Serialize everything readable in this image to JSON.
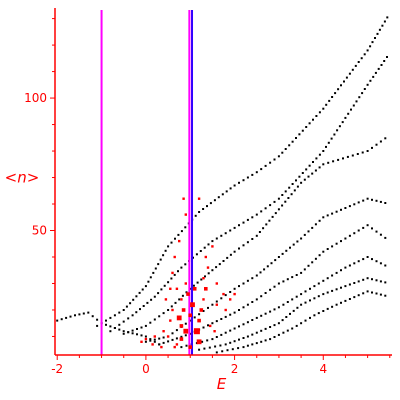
{
  "chart_data": {
    "type": "scatter",
    "xlabel": "E",
    "ylabel": "<n>",
    "xlim": [
      -2.05,
      5.55
    ],
    "ylim": [
      3,
      134
    ],
    "x_ticks": [
      -2,
      0,
      2,
      4
    ],
    "y_ticks": [
      50,
      100
    ],
    "grid": false,
    "colors": {
      "axis": "#ff0000",
      "bands": "#000000",
      "highlight": "#ff0000",
      "vline_magenta": "#ff00ff",
      "vline_blue": "#3300ff"
    },
    "vertical_lines": [
      {
        "x": -1.0,
        "color": "#ff00ff"
      },
      {
        "x": 0.98,
        "color": "#ff00ff"
      },
      {
        "x": 1.04,
        "color": "#3300ff"
      }
    ],
    "band_curves": [
      {
        "x": [
          -2.0,
          -1.6,
          -1.3,
          -1.0,
          -0.5,
          0.0,
          0.4
        ],
        "y": [
          16,
          18,
          19,
          15,
          12,
          10,
          6
        ]
      },
      {
        "x": [
          -1.1,
          -0.5,
          0.0,
          0.5,
          1.2,
          2.0,
          2.5,
          3.0,
          4.0,
          5.0,
          5.5
        ],
        "y": [
          14,
          20,
          29,
          44,
          57,
          67,
          72,
          78,
          96,
          118,
          132
        ]
      },
      {
        "x": [
          -0.8,
          -0.3,
          0.2,
          0.8,
          1.5,
          2.5,
          3.0,
          4.0,
          5.0,
          5.5
        ],
        "y": [
          12,
          18,
          25,
          36,
          46,
          56,
          62,
          80,
          105,
          117
        ]
      },
      {
        "x": [
          -0.5,
          0.0,
          0.5,
          1.0,
          1.5,
          2.0,
          2.5,
          3.0,
          3.5,
          4.0,
          5.0,
          5.5
        ],
        "y": [
          11,
          14,
          20,
          28,
          35,
          42,
          48,
          58,
          68,
          75,
          80,
          86
        ]
      },
      {
        "x": [
          0.0,
          0.5,
          1.0,
          1.5,
          2.0,
          2.5,
          3.0,
          3.5,
          4.0,
          5.0,
          5.5
        ],
        "y": [
          8,
          10,
          16,
          22,
          28,
          33,
          40,
          47,
          55,
          62,
          60
        ]
      },
      {
        "x": [
          0.3,
          1.0,
          1.5,
          2.0,
          2.5,
          3.0,
          3.5,
          4.0,
          4.5,
          5.0,
          5.5
        ],
        "y": [
          7,
          11,
          15,
          19,
          24,
          30,
          34,
          42,
          47,
          52,
          46
        ]
      },
      {
        "x": [
          0.8,
          1.5,
          2.0,
          2.5,
          3.0,
          3.5,
          4.0,
          4.5,
          5.0,
          5.5
        ],
        "y": [
          6,
          9,
          13,
          17,
          21,
          26,
          31,
          36,
          40,
          36
        ]
      },
      {
        "x": [
          1.2,
          1.8,
          2.3,
          3.0,
          3.5,
          4.0,
          4.5,
          5.0,
          5.5
        ],
        "y": [
          5,
          7,
          10,
          15,
          22,
          26,
          29,
          32,
          30
        ]
      },
      {
        "x": [
          1.6,
          2.2,
          2.8,
          3.3,
          3.8,
          4.3,
          5.0,
          5.5
        ],
        "y": [
          4,
          6,
          9,
          13,
          18,
          22,
          27,
          25
        ]
      }
    ],
    "highlight_points": [
      {
        "x": 0.7,
        "y": 7,
        "s": 2
      },
      {
        "x": 0.8,
        "y": 9,
        "s": 3
      },
      {
        "x": 0.9,
        "y": 12,
        "s": 4
      },
      {
        "x": 0.8,
        "y": 14,
        "s": 3
      },
      {
        "x": 0.75,
        "y": 17,
        "s": 4
      },
      {
        "x": 0.85,
        "y": 20,
        "s": 3
      },
      {
        "x": 0.8,
        "y": 24,
        "s": 2
      },
      {
        "x": 0.7,
        "y": 28,
        "s": 2
      },
      {
        "x": 0.9,
        "y": 30,
        "s": 2
      },
      {
        "x": 1.2,
        "y": 8,
        "s": 4
      },
      {
        "x": 1.15,
        "y": 12,
        "s": 5
      },
      {
        "x": 1.2,
        "y": 16,
        "s": 3
      },
      {
        "x": 1.25,
        "y": 20,
        "s": 3
      },
      {
        "x": 1.3,
        "y": 24,
        "s": 2
      },
      {
        "x": 1.35,
        "y": 28,
        "s": 3
      },
      {
        "x": 1.3,
        "y": 32,
        "s": 2
      },
      {
        "x": 1.4,
        "y": 36,
        "s": 2
      },
      {
        "x": 1.35,
        "y": 40,
        "s": 2
      },
      {
        "x": 1.5,
        "y": 44,
        "s": 2
      },
      {
        "x": 1.6,
        "y": 22,
        "s": 2
      },
      {
        "x": 1.6,
        "y": 30,
        "s": 2
      },
      {
        "x": 1.75,
        "y": 26,
        "s": 2
      },
      {
        "x": 1.8,
        "y": 20,
        "s": 2
      },
      {
        "x": 1.9,
        "y": 24,
        "s": 2
      },
      {
        "x": 2.0,
        "y": 26,
        "s": 2
      },
      {
        "x": 0.5,
        "y": 10,
        "s": 2
      },
      {
        "x": 0.4,
        "y": 12,
        "s": 2
      },
      {
        "x": 0.55,
        "y": 16,
        "s": 2
      },
      {
        "x": 0.6,
        "y": 20,
        "s": 2
      },
      {
        "x": 0.45,
        "y": 24,
        "s": 2
      },
      {
        "x": 0.55,
        "y": 28,
        "s": 2
      },
      {
        "x": 0.6,
        "y": 34,
        "s": 2
      },
      {
        "x": 0.65,
        "y": 40,
        "s": 2
      },
      {
        "x": 0.75,
        "y": 46,
        "s": 2
      },
      {
        "x": 0.9,
        "y": 56,
        "s": 2
      },
      {
        "x": 0.85,
        "y": 62,
        "s": 2
      },
      {
        "x": 1.2,
        "y": 62,
        "s": 2
      },
      {
        "x": 0.15,
        "y": 7,
        "s": 2
      },
      {
        "x": 0.2,
        "y": 10,
        "s": 2
      },
      {
        "x": 0.0,
        "y": 9,
        "s": 2
      },
      {
        "x": -0.1,
        "y": 8,
        "s": 2
      },
      {
        "x": 1.05,
        "y": 22,
        "s": 4
      },
      {
        "x": 1.0,
        "y": 18,
        "s": 3
      },
      {
        "x": 1.1,
        "y": 28,
        "s": 3
      },
      {
        "x": 0.95,
        "y": 26,
        "s": 3
      },
      {
        "x": 1.45,
        "y": 14,
        "s": 2
      },
      {
        "x": 1.55,
        "y": 12,
        "s": 2
      },
      {
        "x": 0.65,
        "y": 6,
        "s": 2
      },
      {
        "x": 1.0,
        "y": 6,
        "s": 3
      },
      {
        "x": 0.35,
        "y": 6,
        "s": 2
      }
    ]
  }
}
